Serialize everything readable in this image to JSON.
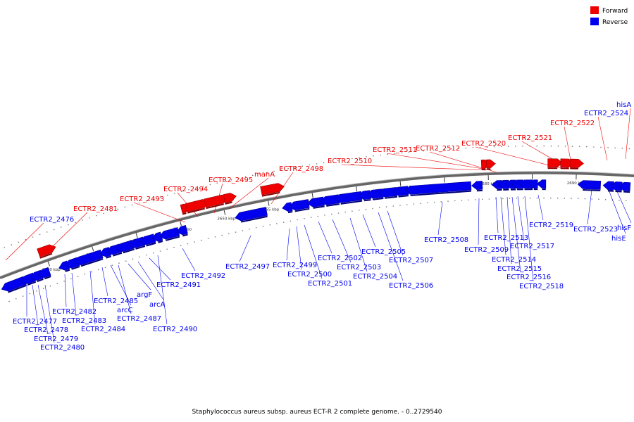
{
  "legend": [
    {
      "label": "Forward",
      "color": "#ee0000"
    },
    {
      "label": "Reverse",
      "color": "#0000ee"
    }
  ],
  "caption": "Staphylococcus aureus subsp. aureus ECT-R 2 complete genome. - 0..2729540",
  "colors": {
    "forward": "#ee0000",
    "reverse": "#0000ee",
    "backbone": "#666666"
  },
  "scale_ticks": [
    "2630 kbp",
    "2635 kbp",
    "2640 kbp",
    "2645 kbp",
    "2650 kbp",
    "2655 kbp",
    "2660 kbp",
    "2665 kbp",
    "2670 kbp",
    "2675 kbp",
    "2680 kbp",
    "2685 kbp",
    "2690 kbp"
  ],
  "forward_labels": [
    "ECTR2_2476",
    "ECTR2_2481",
    "ECTR2_2493",
    "ECTR2_2494",
    "ECTR2_2495",
    "manA",
    "ECTR2_2498",
    "ECTR2_2510",
    "ECTR2_2511",
    "ECTR2_2512",
    "ECTR2_2520",
    "ECTR2_2521",
    "ECTR2_2522",
    "ECTR2_2524",
    "hisA"
  ],
  "reverse_labels": [
    "ECTR2_2477",
    "ECTR2_2478",
    "ECTR2_2479",
    "ECTR2_2480",
    "ECTR2_2482",
    "ECTR2_2483",
    "ECTR2_2484",
    "ECTR2_2485",
    "arcC",
    "ECTR2_2487",
    "argF",
    "arcA",
    "ECTR2_2490",
    "ECTR2_2491",
    "ECTR2_2492",
    "ECTR2_2497",
    "ECTR2_2499",
    "ECTR2_2500",
    "ECTR2_2501",
    "ECTR2_2502",
    "ECTR2_2503",
    "ECTR2_2504",
    "ECTR2_2505",
    "ECTR2_2506",
    "ECTR2_2507",
    "ECTR2_2508",
    "ECTR2_2509",
    "ECTR2_2513",
    "ECTR2_2514",
    "ECTR2_2515",
    "ECTR2_2516",
    "ECTR2_2517",
    "ECTR2_2518",
    "ECTR2_2519",
    "ECTR2_2523",
    "hisF",
    "hisE"
  ]
}
